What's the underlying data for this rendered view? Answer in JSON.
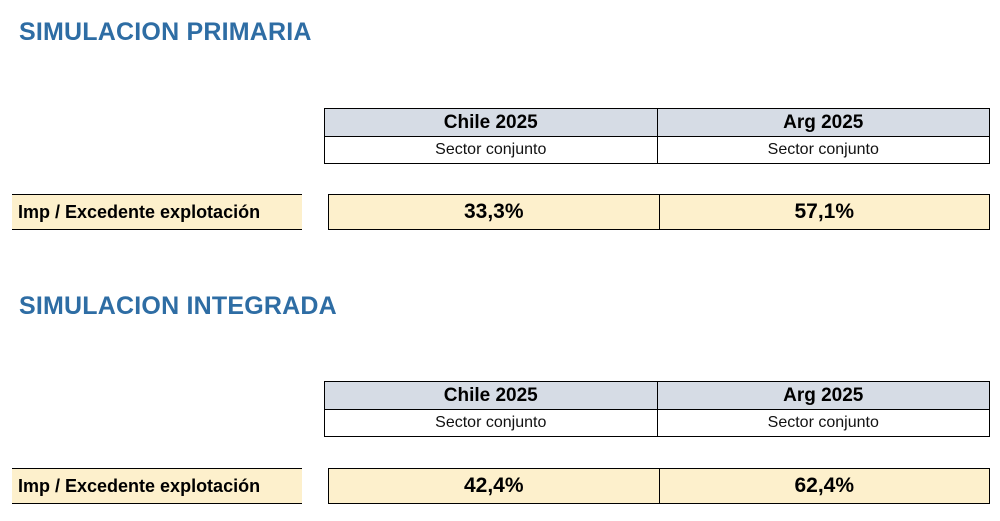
{
  "sections": [
    {
      "title": "SIMULACION PRIMARIA",
      "columns": [
        {
          "header": "Chile 2025",
          "sub": "Sector conjunto",
          "value": "33,3%"
        },
        {
          "header": "Arg 2025",
          "sub": "Sector conjunto",
          "value": "57,1%"
        }
      ],
      "row_label": "Imp / Excedente explotación"
    },
    {
      "title": "SIMULACION INTEGRADA",
      "columns": [
        {
          "header": "Chile 2025",
          "sub": "Sector conjunto",
          "value": "42,4%"
        },
        {
          "header": "Arg 2025",
          "sub": "Sector conjunto",
          "value": "62,4%"
        }
      ],
      "row_label": "Imp / Excedente explotación"
    }
  ],
  "colors": {
    "title": "#2e6da4",
    "header_fill": "#d6dce5",
    "value_fill": "#fdf0cc"
  }
}
